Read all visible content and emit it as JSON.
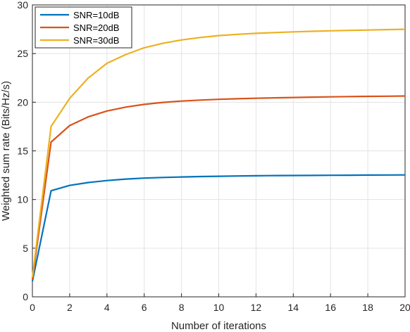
{
  "chart_data": {
    "type": "line",
    "title": "",
    "xlabel": "Number of iterations",
    "ylabel": "Weighted sum rate (Bits/Hz/s)",
    "xlim": [
      0,
      20
    ],
    "ylim": [
      0,
      30
    ],
    "x_ticks": [
      0,
      2,
      4,
      6,
      8,
      10,
      12,
      14,
      16,
      18,
      20
    ],
    "y_ticks": [
      0,
      5,
      10,
      15,
      20,
      25,
      30
    ],
    "grid": true,
    "legend_position": "top-left",
    "x": [
      0,
      1,
      2,
      3,
      4,
      5,
      6,
      7,
      8,
      9,
      10,
      11,
      12,
      13,
      14,
      15,
      16,
      17,
      18,
      19,
      20
    ],
    "series": [
      {
        "name": "SNR=10dB",
        "color": "#0072BD",
        "values": [
          1.6,
          10.9,
          11.45,
          11.75,
          11.95,
          12.1,
          12.2,
          12.27,
          12.32,
          12.36,
          12.39,
          12.42,
          12.44,
          12.46,
          12.47,
          12.48,
          12.49,
          12.5,
          12.51,
          12.52,
          12.53
        ]
      },
      {
        "name": "SNR=20dB",
        "color": "#D95319",
        "values": [
          1.8,
          15.9,
          17.6,
          18.5,
          19.1,
          19.5,
          19.78,
          19.98,
          20.12,
          20.22,
          20.3,
          20.36,
          20.41,
          20.45,
          20.49,
          20.52,
          20.55,
          20.58,
          20.6,
          20.62,
          20.64
        ]
      },
      {
        "name": "SNR=30dB",
        "color": "#EDB120",
        "values": [
          2.0,
          17.5,
          20.4,
          22.5,
          24.0,
          24.9,
          25.6,
          26.05,
          26.4,
          26.65,
          26.85,
          26.98,
          27.08,
          27.16,
          27.23,
          27.29,
          27.34,
          27.38,
          27.42,
          27.46,
          27.5
        ]
      }
    ]
  }
}
